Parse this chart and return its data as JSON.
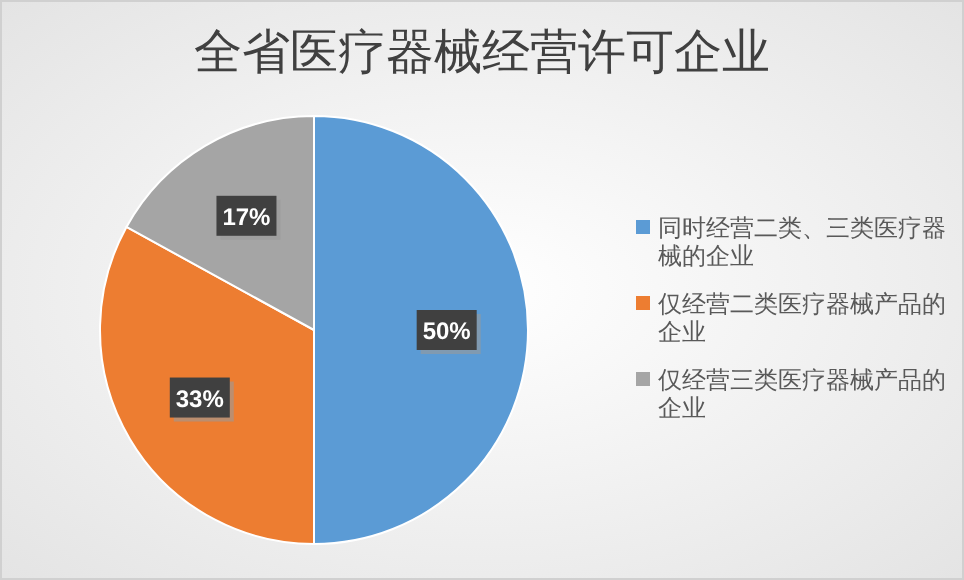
{
  "chart_data": {
    "type": "pie",
    "title": "全省医疗器械经营许可企业",
    "categories": [
      "同时经营二类、三类医疗器械的企业",
      "仅经营二类医疗器械产品的企业",
      "仅经营三类医疗器械产品的企业"
    ],
    "values": [
      50,
      33,
      17
    ],
    "colors": [
      "#5b9bd5",
      "#ed7d31",
      "#a5a5a5"
    ],
    "value_labels": [
      "50%",
      "33%",
      "17%"
    ],
    "legend": "right"
  }
}
